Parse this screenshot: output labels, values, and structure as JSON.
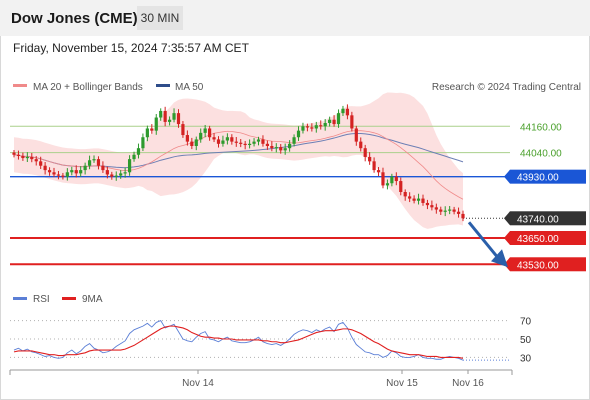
{
  "header": {
    "title": "Dow Jones (CME)",
    "timeframe": "30 MIN"
  },
  "datetime": "Friday, November 15, 2024 7:35:57 AM CET",
  "legend": {
    "bollinger": "MA 20 + Bollinger Bands",
    "ma50": "MA 50",
    "credit": "Research © 2024 Trading Central"
  },
  "rsi_legend": {
    "rsi": "RSI",
    "ma": "9MA"
  },
  "colors": {
    "resistance": "#aad08c",
    "pivot": "#1a56d6",
    "support": "#e02020",
    "bollinger_fill": "#fbd5d5",
    "ma50": "#6c7fb5",
    "arrow": "#2a5faa",
    "rsi": "#5b7fd6",
    "rsi_ma": "#e02020",
    "up": "#2e9a2e",
    "down": "#d42222",
    "current": "#333333"
  },
  "chart_data": [
    {
      "type": "candlestick",
      "title": "Dow Jones (CME)",
      "ylim": [
        43440,
        44280
      ],
      "levels": [
        {
          "label": "44160.00",
          "value": 44160,
          "kind": "resistance"
        },
        {
          "label": "44040.00",
          "value": 44040,
          "kind": "resistance"
        },
        {
          "label": "43930.00",
          "value": 43930,
          "kind": "pivot"
        },
        {
          "label": "43740.00",
          "value": 43740,
          "kind": "current"
        },
        {
          "label": "43650.00",
          "value": 43650,
          "kind": "support"
        },
        {
          "label": "43530.00",
          "value": 43530,
          "kind": "support"
        }
      ],
      "x_ticks": [
        "Nov 14",
        "Nov 15",
        "Nov 16"
      ],
      "series": [
        {
          "name": "MA 20 + Bollinger Bands"
        },
        {
          "name": "MA 50"
        }
      ],
      "closes": [
        44030,
        44025,
        44015,
        44020,
        44010,
        44000,
        43980,
        43960,
        43950,
        43940,
        43935,
        43930,
        43950,
        43960,
        43945,
        43960,
        43980,
        44005,
        44010,
        43980,
        43960,
        43940,
        43930,
        43935,
        43945,
        43950,
        44010,
        44030,
        44060,
        44110,
        44150,
        44140,
        44200,
        44230,
        44180,
        44190,
        44220,
        44170,
        44120,
        44090,
        44070,
        44100,
        44130,
        44150,
        44110,
        44100,
        44080,
        44095,
        44110,
        44090,
        44085,
        44080,
        44075,
        44080,
        44090,
        44100,
        44080,
        44070,
        44060,
        44065,
        44050,
        44060,
        44080,
        44110,
        44140,
        44160,
        44155,
        44150,
        44165,
        44160,
        44175,
        44190,
        44170,
        44220,
        44240,
        44210,
        44150,
        44090,
        44060,
        44020,
        44000,
        43960,
        43950,
        43890,
        43900,
        43930,
        43910,
        43860,
        43840,
        43830,
        43820,
        43830,
        43810,
        43800,
        43790,
        43780,
        43770,
        43775,
        43780,
        43770,
        43760,
        43740
      ]
    },
    {
      "type": "line",
      "title": "RSI",
      "ylim": [
        25,
        75
      ],
      "y_ticks": [
        70,
        50,
        30
      ],
      "series": [
        {
          "name": "RSI",
          "values": [
            38,
            40,
            37,
            39,
            36,
            35,
            33,
            31,
            32,
            30,
            29,
            30,
            35,
            38,
            34,
            37,
            42,
            45,
            40,
            38,
            35,
            36,
            38,
            42,
            45,
            48,
            56,
            60,
            62,
            64,
            67,
            63,
            68,
            70,
            62,
            64,
            66,
            58,
            50,
            48,
            47,
            52,
            56,
            58,
            50,
            49,
            47,
            50,
            52,
            48,
            47,
            46,
            46,
            47,
            49,
            52,
            47,
            45,
            44,
            45,
            43,
            46,
            50,
            55,
            58,
            60,
            59,
            57,
            60,
            58,
            61,
            63,
            58,
            66,
            68,
            62,
            52,
            44,
            40,
            36,
            35,
            33,
            33,
            30,
            32,
            37,
            35,
            31,
            30,
            30,
            31,
            33,
            30,
            29,
            29,
            28,
            28,
            30,
            31,
            30,
            29,
            27
          ]
        },
        {
          "name": "9MA",
          "values": [
            36,
            37,
            37,
            37,
            37,
            36,
            35,
            34,
            33,
            33,
            32,
            32,
            33,
            33,
            33,
            34,
            35,
            37,
            38,
            38,
            38,
            38,
            38,
            38,
            38,
            39,
            41,
            43,
            46,
            49,
            52,
            55,
            58,
            61,
            63,
            64,
            64,
            63,
            62,
            60,
            57,
            55,
            53,
            52,
            52,
            51,
            51,
            50,
            50,
            50,
            49,
            49,
            49,
            49,
            49,
            49,
            48,
            48,
            47,
            47,
            46,
            46,
            47,
            48,
            49,
            51,
            53,
            55,
            57,
            58,
            59,
            59,
            59,
            60,
            61,
            61,
            60,
            58,
            56,
            53,
            50,
            47,
            45,
            42,
            39,
            37,
            36,
            35,
            34,
            33,
            33,
            33,
            32,
            31,
            31,
            31,
            30,
            30,
            30,
            30,
            30,
            29
          ]
        }
      ]
    }
  ]
}
